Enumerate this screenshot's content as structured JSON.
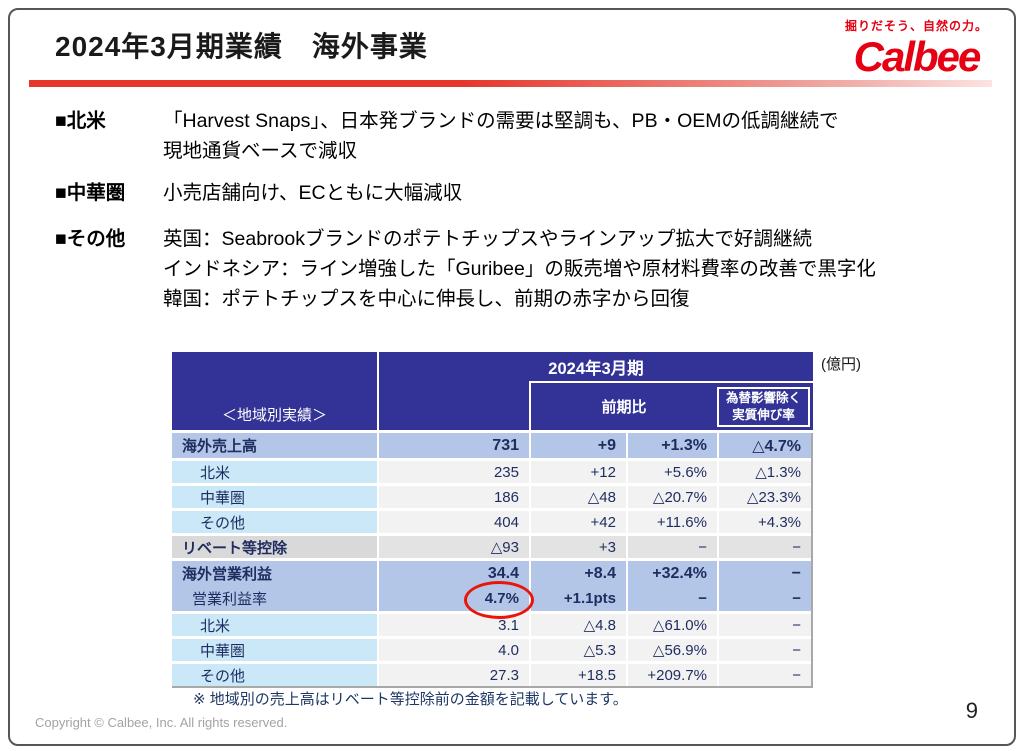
{
  "slide": {
    "title": "2024年3月期業績　海外事業",
    "page_number": "9",
    "copyright": "Copyright © Calbee, Inc. All rights reserved.",
    "logo": {
      "tagline": "掘りだそう、自然の力。",
      "brand": "Calbee"
    }
  },
  "bullets": [
    {
      "label": "■北米",
      "lines": [
        "「Harvest Snaps」、日本発ブランドの需要は堅調も、PB・OEMの低調継続で",
        "現地通貨ベースで減収"
      ]
    },
    {
      "label": "■中華圏",
      "lines": [
        "小売店舗向け、ECともに大幅減収"
      ]
    },
    {
      "label": "■その他",
      "lines": [
        "英国：Seabrookブランドのポテトチップスやラインアップ拡大で好調継続",
        "インドネシア：ライン増強した「Guribee」の販売増や原材料費率の改善で黒字化",
        "韓国：ポテトチップスを中心に伸長し、前期の赤字から回復"
      ]
    }
  ],
  "table": {
    "unit_label": "(億円)",
    "corner_label": "＜地域別実績＞",
    "period_header": "2024年3月期",
    "yoy_header": "前期比",
    "forex_header": [
      "為替影響除く",
      "実質伸び率"
    ],
    "rows": [
      {
        "label": "海外売上高",
        "values": [
          "731",
          "+9",
          "+1.3%",
          "△4.7%"
        ]
      },
      {
        "label": "北米",
        "values": [
          "235",
          "+12",
          "+5.6%",
          "△1.3%"
        ]
      },
      {
        "label": "中華圏",
        "values": [
          "186",
          "△48",
          "△20.7%",
          "△23.3%"
        ]
      },
      {
        "label": "その他",
        "values": [
          "404",
          "+42",
          "+11.6%",
          "+4.3%"
        ]
      },
      {
        "label": "リベート等控除",
        "values": [
          "△93",
          "+3",
          "−",
          "−"
        ]
      },
      {
        "label": "海外営業利益",
        "values": [
          "34.4",
          "+8.4",
          "+32.4%",
          "−"
        ]
      },
      {
        "label": "営業利益率",
        "values": [
          "4.7%",
          "+1.1pts",
          "−",
          "−"
        ]
      },
      {
        "label": "北米",
        "values": [
          "3.1",
          "△4.8",
          "△61.0%",
          "−"
        ]
      },
      {
        "label": "中華圏",
        "values": [
          "4.0",
          "△5.3",
          "△56.9%",
          "−"
        ]
      },
      {
        "label": "その他",
        "values": [
          "27.3",
          "+18.5",
          "+209.7%",
          "−"
        ]
      }
    ],
    "footnote": "※ 地域別の売上高はリベート等控除前の金額を記載しています。"
  },
  "colors": {
    "brand_red": "#e60012",
    "header_blue": "#333397",
    "row_periwinkle": "#b3c6e7",
    "row_cyan": "#cae8f8",
    "row_gray": "#d9d9d9",
    "table_text_navy": "#1f2c5f",
    "highlight_circle_red": "#ea1508"
  }
}
